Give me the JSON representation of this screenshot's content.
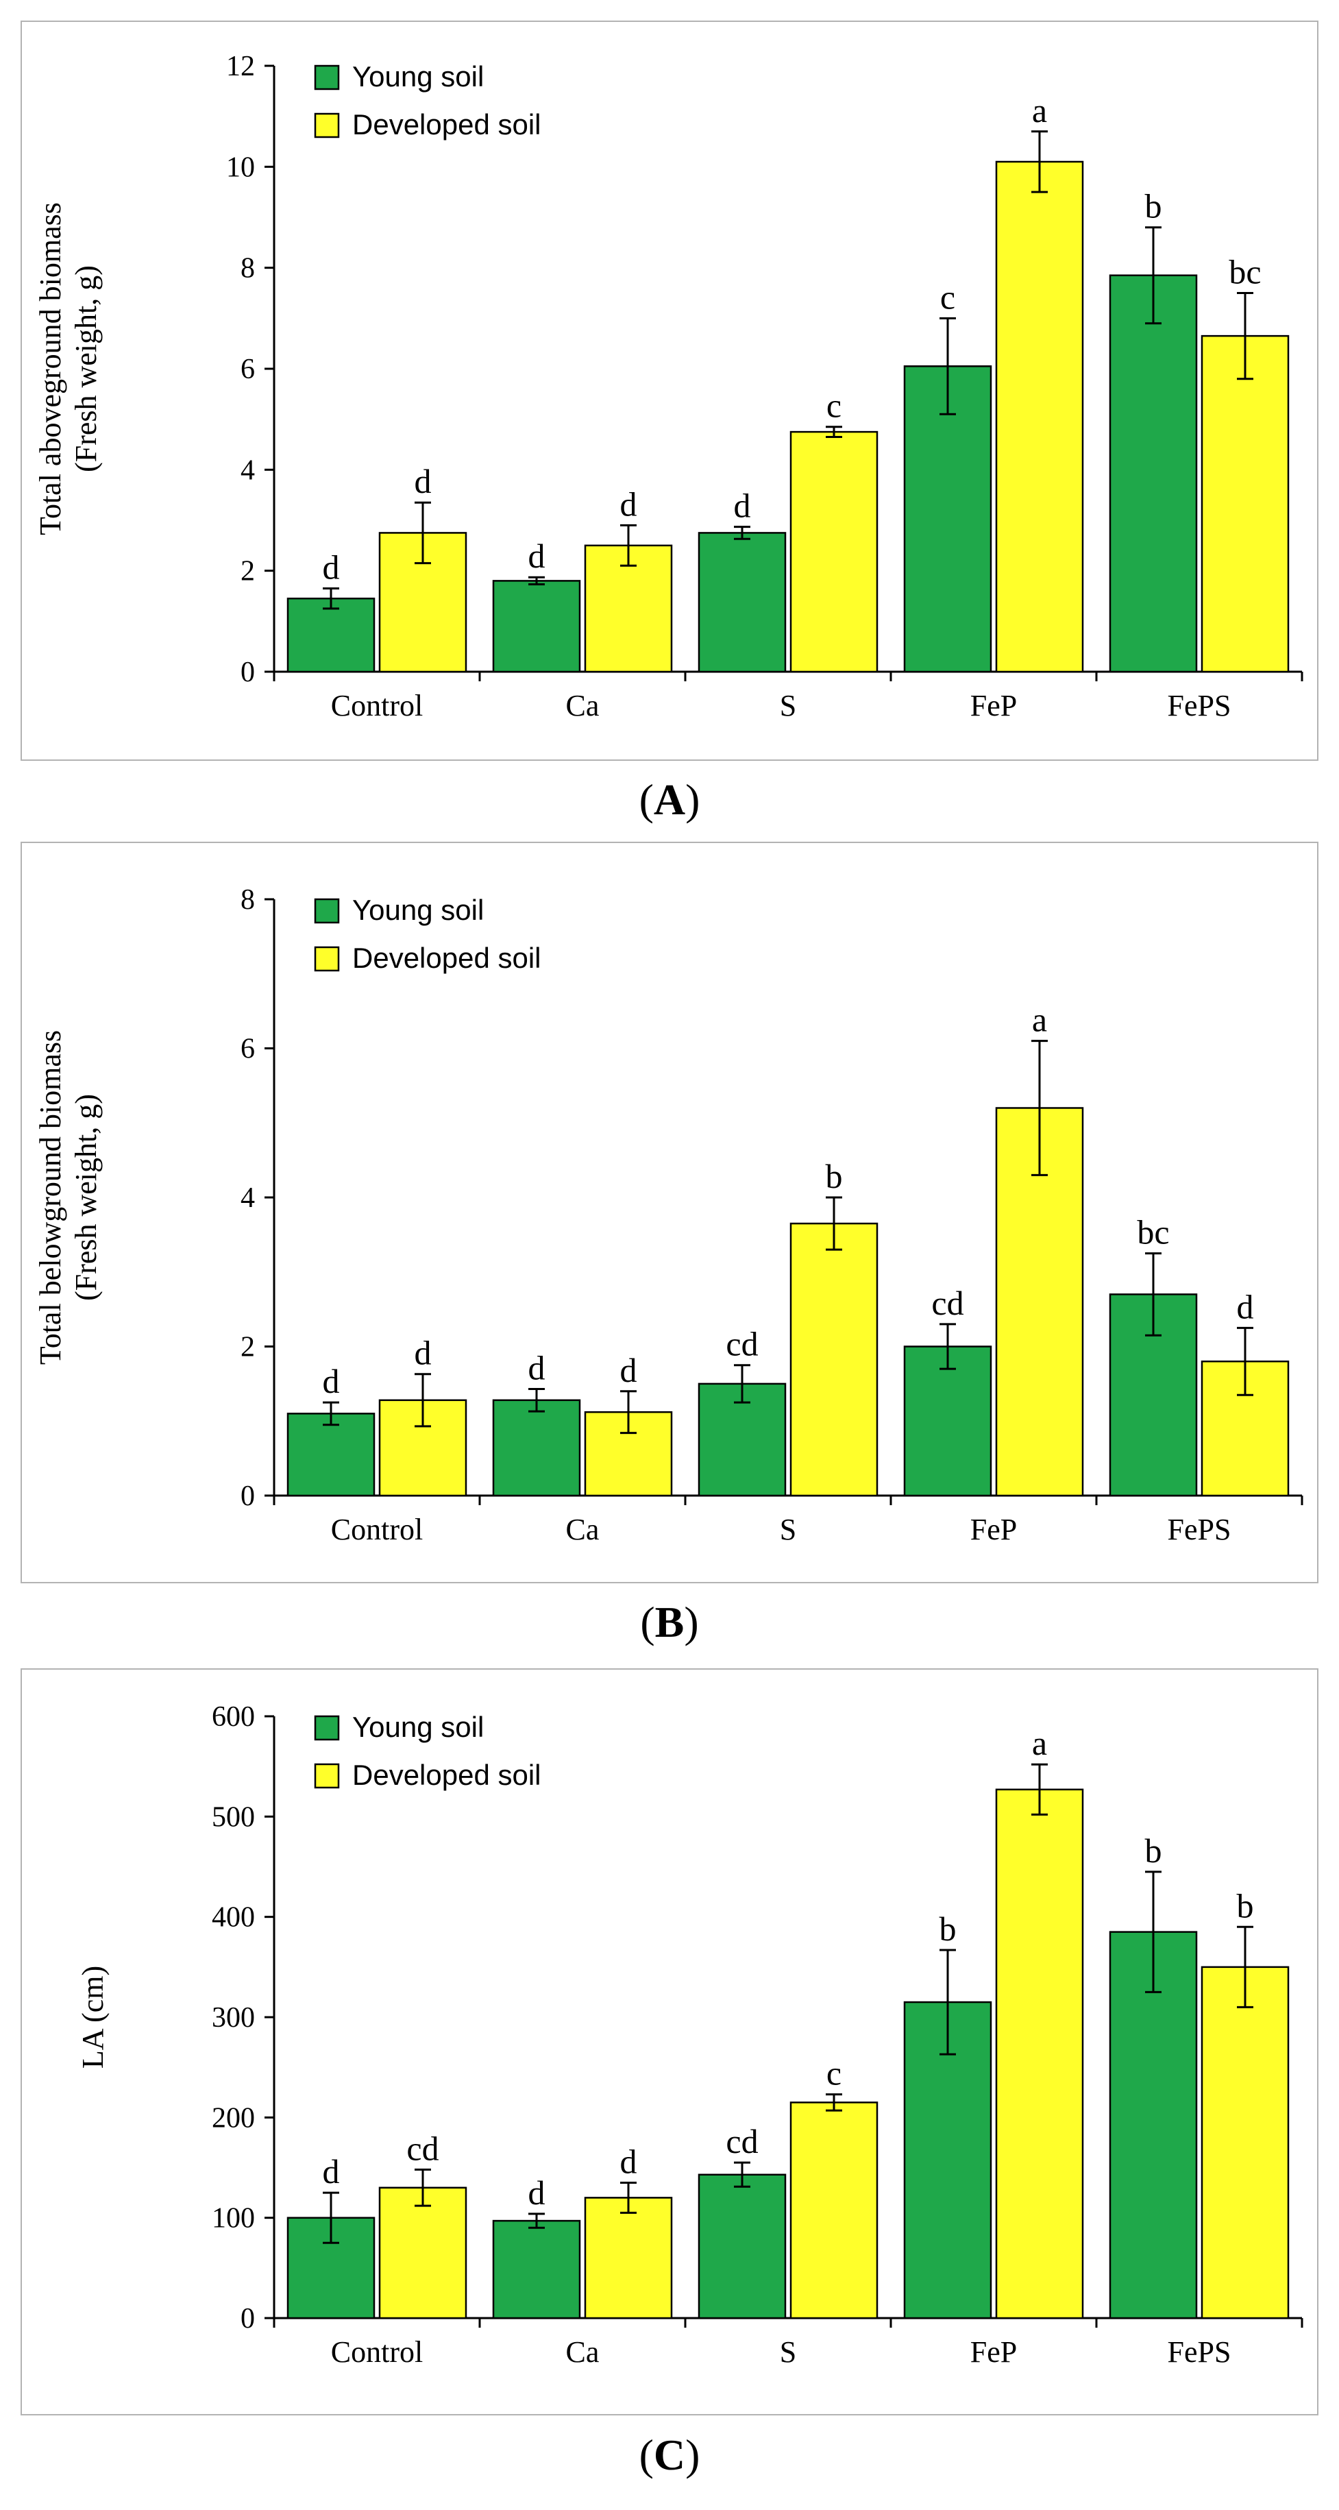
{
  "colors": {
    "young": "#1fa84a",
    "developed": "#ffff2a",
    "frame": "#b3b3b3"
  },
  "chart_data": [
    {
      "type": "bar",
      "panel": "A",
      "categories": [
        "Control",
        "Ca",
        "S",
        "FeP",
        "FePS"
      ],
      "ylabel_line1": "Total aboveground biomass",
      "ylabel_line2": "(Fresh weight, g)",
      "ylim": [
        0,
        12
      ],
      "yticks": [
        "0",
        "2",
        "4",
        "6",
        "8",
        "10",
        "12"
      ],
      "tick_values": [
        0,
        2,
        4,
        6,
        8,
        10,
        12
      ],
      "legend": [
        "Young soil",
        "Developed soil"
      ],
      "legend_position": "top-left",
      "grid": false,
      "series": [
        {
          "name": "Young soil",
          "values": [
            1.45,
            1.8,
            2.75,
            6.05,
            7.85
          ],
          "errors": [
            0.2,
            0.07,
            0.12,
            0.95,
            0.95
          ],
          "letters": [
            "d",
            "d",
            "d",
            "c",
            "b"
          ]
        },
        {
          "name": "Developed soil",
          "values": [
            2.75,
            2.5,
            4.75,
            10.1,
            6.65
          ],
          "errors": [
            0.6,
            0.4,
            0.1,
            0.6,
            0.85
          ],
          "letters": [
            "d",
            "d",
            "c",
            "a",
            "bc"
          ]
        }
      ]
    },
    {
      "type": "bar",
      "panel": "B",
      "categories": [
        "Control",
        "Ca",
        "S",
        "FeP",
        "FePS"
      ],
      "ylabel_line1": "Total belowground biomass",
      "ylabel_line2": "(Fresh weight, g)",
      "ylim": [
        0,
        8
      ],
      "yticks": [
        "0",
        "2",
        "4",
        "6",
        "8"
      ],
      "tick_values": [
        0,
        2,
        4,
        6,
        8
      ],
      "legend": [
        "Young soil",
        "Developed soil"
      ],
      "legend_position": "top-left",
      "grid": false,
      "series": [
        {
          "name": "Young soil",
          "values": [
            1.1,
            1.28,
            1.5,
            2.0,
            2.7
          ],
          "errors": [
            0.15,
            0.15,
            0.25,
            0.3,
            0.55
          ],
          "letters": [
            "d",
            "d",
            "cd",
            "cd",
            "bc"
          ]
        },
        {
          "name": "Developed soil",
          "values": [
            1.28,
            1.12,
            3.65,
            5.2,
            1.8
          ],
          "errors": [
            0.35,
            0.28,
            0.35,
            0.9,
            0.45
          ],
          "letters": [
            "d",
            "d",
            "b",
            "a",
            "d"
          ]
        }
      ]
    },
    {
      "type": "bar",
      "panel": "C",
      "categories": [
        "Control",
        "Ca",
        "S",
        "FeP",
        "FePS"
      ],
      "ylabel_line1": "LA (cm)",
      "ylabel_line2": "",
      "ylim": [
        0,
        600
      ],
      "yticks": [
        "0",
        "100",
        "200",
        "300",
        "400",
        "500",
        "600"
      ],
      "tick_values": [
        0,
        100,
        200,
        300,
        400,
        500,
        600
      ],
      "legend": [
        "Young soil",
        "Developed soil"
      ],
      "legend_position": "top-left",
      "grid": false,
      "series": [
        {
          "name": "Young soil",
          "values": [
            100,
            97,
            143,
            315,
            385
          ],
          "errors": [
            25,
            7,
            12,
            52,
            60
          ],
          "letters": [
            "d",
            "d",
            "cd",
            "b",
            "b"
          ]
        },
        {
          "name": "Developed soil",
          "values": [
            130,
            120,
            215,
            527,
            350
          ],
          "errors": [
            18,
            15,
            8,
            25,
            40
          ],
          "letters": [
            "cd",
            "d",
            "c",
            "a",
            "b"
          ]
        }
      ]
    }
  ],
  "panel_labels": {
    "A": {
      "open": "(",
      "letter": "A",
      "close": ")"
    },
    "B": {
      "open": "(",
      "letter": "B",
      "close": ")"
    },
    "C": {
      "open": "(",
      "letter": "C",
      "close": ")"
    }
  }
}
